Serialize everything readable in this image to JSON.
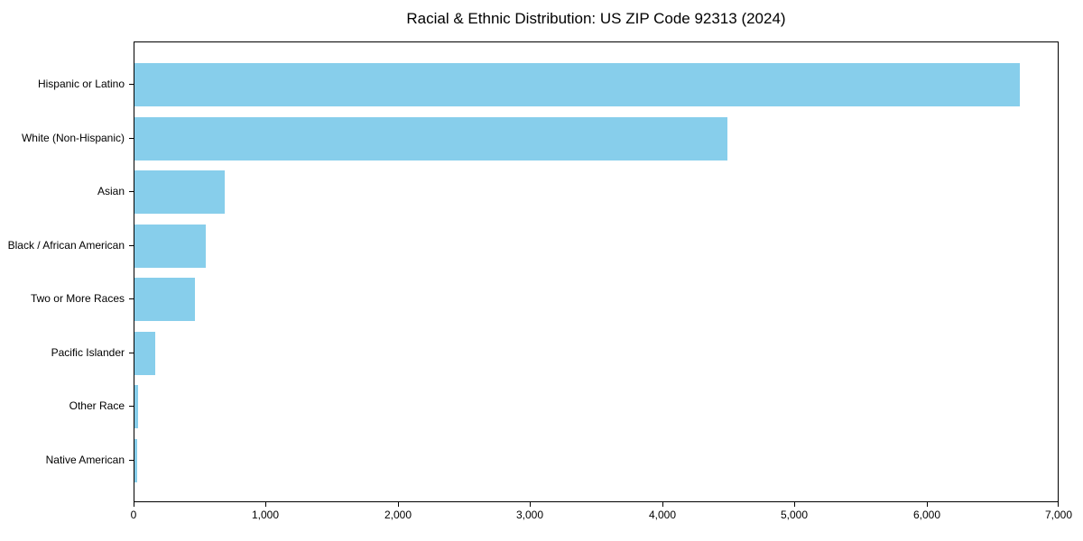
{
  "title": "Racial & Ethnic Distribution: US ZIP Code 92313 (2024)",
  "chart_data": {
    "type": "bar",
    "orientation": "horizontal",
    "title": "Racial & Ethnic Distribution: US ZIP Code 92313 (2024)",
    "xlabel": "",
    "ylabel": "",
    "categories": [
      "Hispanic or Latino",
      "White (Non-Hispanic)",
      "Asian",
      "Black / African American",
      "Two or More Races",
      "Pacific Islander",
      "Other Race",
      "Native American"
    ],
    "values": [
      6700,
      4490,
      680,
      540,
      460,
      160,
      25,
      20
    ],
    "xlim": [
      0,
      7000
    ],
    "x_ticks": [
      0,
      1000,
      2000,
      3000,
      4000,
      5000,
      6000,
      7000
    ],
    "x_tick_labels": [
      "0",
      "1,000",
      "2,000",
      "3,000",
      "4,000",
      "5,000",
      "6,000",
      "7,000"
    ],
    "bar_color": "#87CEEB",
    "axis_color": "#000000",
    "text_color": "#000000",
    "grid": false,
    "legend_position": "none"
  }
}
